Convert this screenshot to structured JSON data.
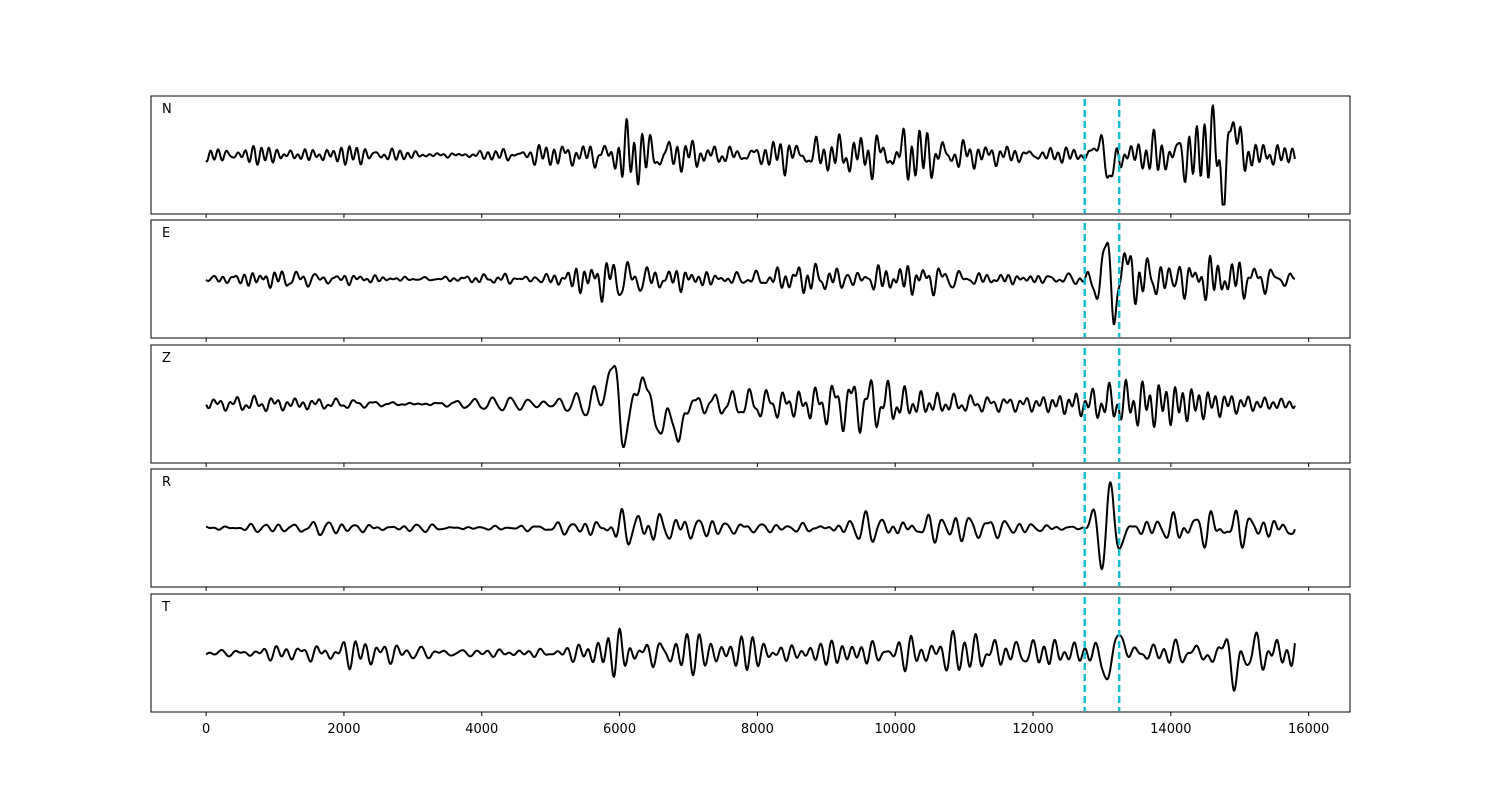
{
  "chart_data": {
    "type": "line",
    "layout": "5 vertically stacked panels sharing one x-axis",
    "x_range": [
      -800,
      16600
    ],
    "x_ticks": [
      0,
      2000,
      4000,
      6000,
      8000,
      10000,
      12000,
      14000,
      16000
    ],
    "x_tick_labels": [
      "0",
      "2000",
      "4000",
      "6000",
      "8000",
      "10000",
      "12000",
      "14000",
      "16000"
    ],
    "y_axis": "hidden",
    "grid": false,
    "trace_color": "#000000",
    "marker_color": "#17becf",
    "vertical_markers": [
      12750,
      13250
    ],
    "sample_range": [
      0,
      15800
    ],
    "series": [
      {
        "name": "N",
        "envelope": [
          [
            0,
            0.26
          ],
          [
            1000,
            0.18
          ],
          [
            2000,
            0.22
          ],
          [
            2400,
            0.3
          ],
          [
            3000,
            0.2
          ],
          [
            4000,
            0.2
          ],
          [
            5000,
            0.25
          ],
          [
            5800,
            0.3
          ],
          [
            6000,
            0.55
          ],
          [
            7000,
            0.5
          ],
          [
            8000,
            0.55
          ],
          [
            8400,
            0.7
          ],
          [
            9000,
            0.5
          ],
          [
            10000,
            0.45
          ],
          [
            11000,
            0.4
          ],
          [
            12000,
            0.38
          ],
          [
            12750,
            0.4
          ],
          [
            13000,
            0.5
          ],
          [
            13200,
            0.5
          ],
          [
            13500,
            0.4
          ],
          [
            14000,
            0.6
          ],
          [
            14600,
            0.6
          ],
          [
            14800,
            1.0
          ],
          [
            15200,
            0.5
          ],
          [
            15800,
            0.3
          ]
        ],
        "peaks": [
          {
            "x": 13100,
            "amp": -0.7
          },
          {
            "x": 13000,
            "amp": 0.5
          },
          {
            "x": 14750,
            "amp": -1.0
          },
          {
            "x": 14880,
            "amp": 0.95
          },
          {
            "x": 14600,
            "amp": 0.6
          }
        ]
      },
      {
        "name": "E",
        "envelope": [
          [
            0,
            0.12
          ],
          [
            2000,
            0.15
          ],
          [
            4000,
            0.1
          ],
          [
            5000,
            0.12
          ],
          [
            5500,
            0.25
          ],
          [
            6000,
            0.4
          ],
          [
            7000,
            0.45
          ],
          [
            7500,
            0.35
          ],
          [
            8000,
            0.35
          ],
          [
            9000,
            0.25
          ],
          [
            10000,
            0.25
          ],
          [
            11000,
            0.3
          ],
          [
            12000,
            0.25
          ],
          [
            12750,
            0.2
          ],
          [
            13500,
            0.4
          ],
          [
            14000,
            0.45
          ],
          [
            15000,
            0.4
          ],
          [
            15800,
            0.35
          ]
        ],
        "peaks": [
          {
            "x": 12950,
            "amp": -0.45
          },
          {
            "x": 13050,
            "amp": 1.0
          },
          {
            "x": 13180,
            "amp": -0.9
          },
          {
            "x": 13300,
            "amp": 0.55
          }
        ]
      },
      {
        "name": "Z",
        "envelope": [
          [
            0,
            0.12
          ],
          [
            1000,
            0.2
          ],
          [
            1500,
            0.28
          ],
          [
            2000,
            0.25
          ],
          [
            3000,
            0.15
          ],
          [
            4000,
            0.15
          ],
          [
            5000,
            0.25
          ],
          [
            5500,
            0.35
          ],
          [
            5800,
            0.6
          ],
          [
            6000,
            0.9
          ],
          [
            6500,
            0.8
          ],
          [
            7000,
            0.7
          ],
          [
            7500,
            0.5
          ],
          [
            8000,
            0.45
          ],
          [
            9000,
            0.4
          ],
          [
            10000,
            0.45
          ],
          [
            11000,
            0.4
          ],
          [
            12000,
            0.35
          ],
          [
            12750,
            0.3
          ],
          [
            13500,
            0.4
          ],
          [
            14000,
            0.45
          ],
          [
            15000,
            0.3
          ],
          [
            15800,
            0.35
          ]
        ],
        "peaks": [
          {
            "x": 5820,
            "amp": 1.0
          },
          {
            "x": 5880,
            "amp": -0.85
          },
          {
            "x": 5940,
            "amp": 1.0
          },
          {
            "x": 6100,
            "amp": -0.9
          },
          {
            "x": 6300,
            "amp": 0.75
          },
          {
            "x": 6600,
            "amp": -0.7
          },
          {
            "x": 6850,
            "amp": -0.9
          }
        ]
      },
      {
        "name": "R",
        "envelope": [
          [
            0,
            0.1
          ],
          [
            2000,
            0.1
          ],
          [
            4000,
            0.12
          ],
          [
            5000,
            0.12
          ],
          [
            5500,
            0.2
          ],
          [
            6000,
            0.35
          ],
          [
            7000,
            0.35
          ],
          [
            7500,
            0.3
          ],
          [
            8000,
            0.25
          ],
          [
            9000,
            0.25
          ],
          [
            10000,
            0.25
          ],
          [
            11000,
            0.25
          ],
          [
            12000,
            0.2
          ],
          [
            12750,
            0.2
          ],
          [
            13500,
            0.35
          ],
          [
            14000,
            0.4
          ],
          [
            15000,
            0.35
          ],
          [
            15800,
            0.35
          ]
        ],
        "peaks": [
          {
            "x": 12900,
            "amp": 0.45
          },
          {
            "x": 13000,
            "amp": -1.0
          },
          {
            "x": 13120,
            "amp": 1.0
          },
          {
            "x": 13250,
            "amp": -0.5
          }
        ]
      },
      {
        "name": "T",
        "envelope": [
          [
            0,
            0.2
          ],
          [
            1000,
            0.15
          ],
          [
            2000,
            0.18
          ],
          [
            3000,
            0.15
          ],
          [
            4000,
            0.15
          ],
          [
            5000,
            0.2
          ],
          [
            5800,
            0.3
          ],
          [
            6000,
            0.4
          ],
          [
            7000,
            0.45
          ],
          [
            8000,
            0.5
          ],
          [
            8400,
            0.65
          ],
          [
            9000,
            0.5
          ],
          [
            10000,
            0.45
          ],
          [
            11000,
            0.35
          ],
          [
            12000,
            0.3
          ],
          [
            12750,
            0.3
          ],
          [
            13000,
            0.45
          ],
          [
            13500,
            0.35
          ],
          [
            14000,
            0.35
          ],
          [
            14500,
            0.35
          ],
          [
            15000,
            0.4
          ],
          [
            15800,
            0.25
          ]
        ],
        "peaks": [
          {
            "x": 13080,
            "amp": -0.55
          },
          {
            "x": 13250,
            "amp": 0.45
          },
          {
            "x": 14780,
            "amp": 1.0
          },
          {
            "x": 14900,
            "amp": -0.95
          },
          {
            "x": 14700,
            "amp": -0.55
          }
        ]
      }
    ]
  }
}
